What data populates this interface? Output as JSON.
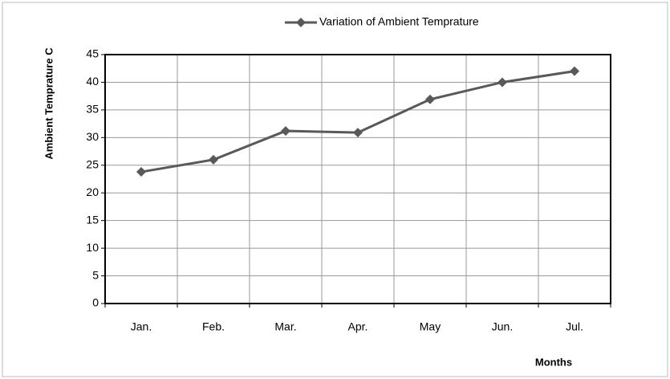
{
  "chart_data": {
    "type": "line",
    "categories": [
      "Jan.",
      "Feb.",
      "Mar.",
      "Apr.",
      "May",
      "Jun.",
      "Jul."
    ],
    "series": [
      {
        "name": "Variation of Ambient Temprature",
        "color": "#595959",
        "values": [
          23.8,
          26,
          31.2,
          30.9,
          36.9,
          40,
          42
        ]
      }
    ],
    "ylim": [
      0,
      45
    ],
    "yticks": [
      0,
      5,
      10,
      15,
      20,
      25,
      30,
      35,
      40,
      45
    ],
    "ylabel": "Ambient Temprature C",
    "xlabel": "Months",
    "grid": true,
    "legend": "top"
  }
}
